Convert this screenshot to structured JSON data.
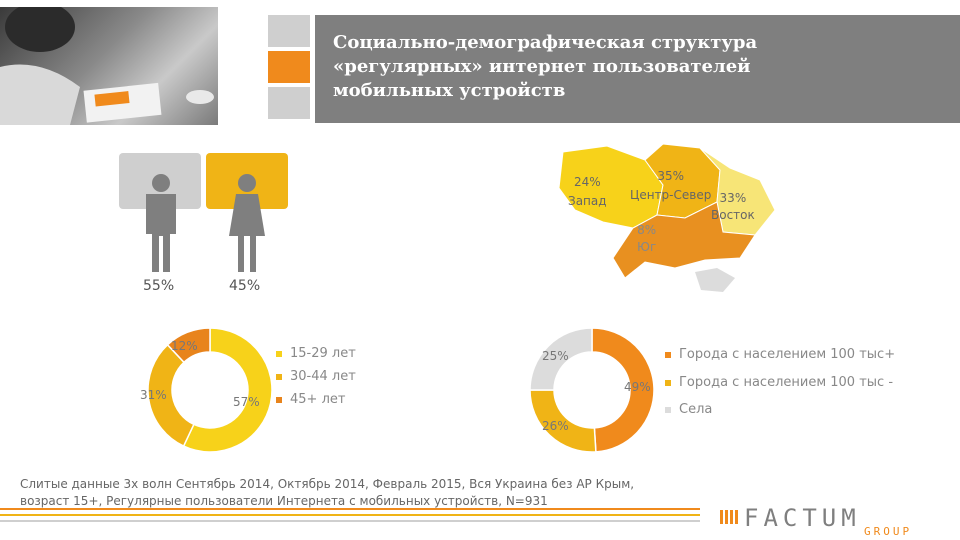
{
  "header": {
    "title": "Социально-демографическая структура\n«регулярных» интернет пользователей\nмобильных устройств"
  },
  "colors": {
    "orange": "#f08a1c",
    "amber": "#f0b416",
    "yellow": "#f7d21a",
    "light": "#dcdcdc",
    "gray": "#7f7f7f"
  },
  "gender": {
    "male": {
      "icon": "male-person-icon",
      "percent": "55%"
    },
    "female": {
      "icon": "female-person-icon",
      "percent": "45%"
    }
  },
  "chart_data": [
    {
      "type": "map",
      "regions": [
        {
          "name": "Запад",
          "label": "24%",
          "value": 24,
          "color": "#f7d21a"
        },
        {
          "name": "Центр-Север",
          "label": "35%",
          "value": 35,
          "color": "#f0b416"
        },
        {
          "name": "Восток",
          "label": "33%",
          "value": 33,
          "color": "#f7e577"
        },
        {
          "name": "Юг",
          "label": "8%",
          "value": 8,
          "color": "#e89020"
        }
      ]
    },
    {
      "type": "pie",
      "donut": true,
      "categories": [
        "15-29 лет",
        "30-44 лет",
        "45+ лет"
      ],
      "values": [
        57,
        31,
        12
      ],
      "labels": [
        "57%",
        "31%",
        "12%"
      ],
      "colors": [
        "#f7d21a",
        "#f0b416",
        "#e8841c"
      ]
    },
    {
      "type": "pie",
      "donut": true,
      "categories": [
        "Города с населением 100 тыс+",
        "Города с населением 100 тыс -",
        "Села"
      ],
      "values": [
        49,
        26,
        25
      ],
      "labels": [
        "49%",
        "26%",
        "25%"
      ],
      "colors": [
        "#f08a1c",
        "#f0b416",
        "#dcdcdc"
      ]
    }
  ],
  "footnote": "Слитые данные 3х волн Сентябрь 2014, Октябрь 2014, Февраль 2015, Вся Украина без АР Крым,\nвозраст 15+, Регулярные пользователи Интернета с мобильных устройств, N=931",
  "logo": {
    "name": "FACTUM",
    "sub": "GROUP"
  }
}
